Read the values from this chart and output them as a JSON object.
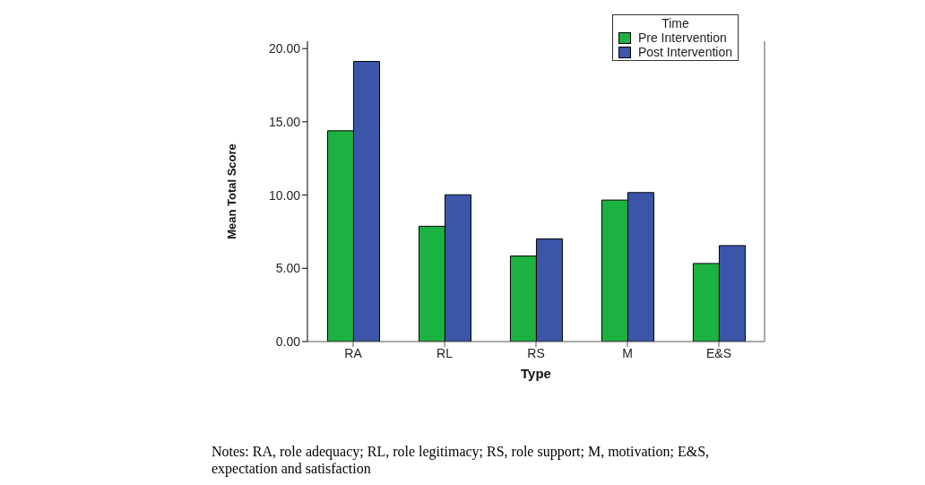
{
  "chart_data": {
    "type": "bar",
    "xlabel": "Type",
    "ylabel": "Mean Total Score",
    "legend_title": "Time",
    "categories": [
      "RA",
      "RL",
      "RS",
      "M",
      "E&S"
    ],
    "series": [
      {
        "name": "Pre Intervention",
        "color": "#1cb241",
        "values": [
          14.39,
          7.87,
          5.84,
          9.66,
          5.33
        ]
      },
      {
        "name": "Post Intervention",
        "color": "#3b56a9",
        "values": [
          19.12,
          10.02,
          7.01,
          10.17,
          6.55
        ]
      }
    ],
    "ylim": [
      0,
      20.5
    ],
    "yticks": [
      {
        "value": 0,
        "label": "0.00"
      },
      {
        "value": 5,
        "label": "5.00"
      },
      {
        "value": 10,
        "label": "10.00"
      },
      {
        "value": 15,
        "label": "15.00"
      },
      {
        "value": 20,
        "label": "20.00"
      }
    ],
    "grid": false,
    "legend": "top right",
    "annotations": [
      "Notes: RA, role adequacy; RL, role legitimacy; RS, role support; M, motivation; E&S, expectation and satisfaction"
    ]
  }
}
